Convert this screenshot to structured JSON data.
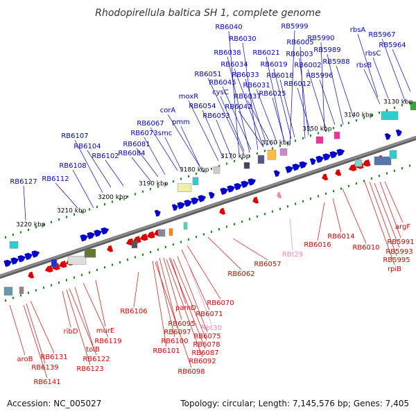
{
  "title": "Rhodopirellula baltica SH 1, complete genome",
  "accession": "Accession: NC_005027",
  "summary": "Topology: circular; Length: 7,145,576 bp; Genes: 7,405",
  "colors": {
    "forward": "#0000cc",
    "reverse": "#dd0000",
    "rna": "#ee88bb",
    "backbone": "#8a8a8a",
    "tick": "#228822"
  },
  "kbp_labels": [
    "3130 kbp",
    "3140 kbp",
    "3150 kbp",
    "3160 kbp",
    "3170 kbp",
    "3180 kbp",
    "3190 kbp",
    "3200 kbp",
    "3210 kbp",
    "3220 kbp"
  ],
  "forward_genes": [
    "RB6040",
    "RB5999",
    "RB6030",
    "RB6005",
    "RB5990",
    "rbsA",
    "RB5967",
    "RB6038",
    "RB6021",
    "RB6003",
    "RB5989",
    "RB5964",
    "RB6034",
    "RB6019",
    "RB6002",
    "RB5988",
    "rbsC",
    "RB6033",
    "RB6018",
    "RB5996",
    "rbsB",
    "RB6051",
    "RB6045",
    "RB6031",
    "RB6012",
    "RB6037",
    "cysC",
    "RB6025",
    "moxR",
    "RB6042",
    "RB6054",
    "corA",
    "RB6053",
    "pmm",
    "RB6067",
    "RB6073",
    "smc",
    "RB6107",
    "RB6081",
    "RB6104",
    "RB6084",
    "RB6102",
    "RB6108",
    "RB6127",
    "RB6112"
  ],
  "reverse_genes": [
    "argF",
    "RB5991",
    "RB5993",
    "RB5995",
    "rpiB",
    "RB6010",
    "RB6014",
    "RB6016",
    "RBt29",
    "RB6057",
    "RB6062",
    "RB6070",
    "RB6071",
    "Rbt30",
    "RB6075",
    "RB6078",
    "RB6087",
    "RB6092",
    "RB6098",
    "pamD",
    "RB6095",
    "RB6097",
    "RB6100",
    "RB6101",
    "RB6106",
    "murE",
    "RB6119",
    "ribD",
    "tolB",
    "RB6122",
    "RB6123",
    "aroB",
    "RB6131",
    "RB6139",
    "RB6141"
  ]
}
